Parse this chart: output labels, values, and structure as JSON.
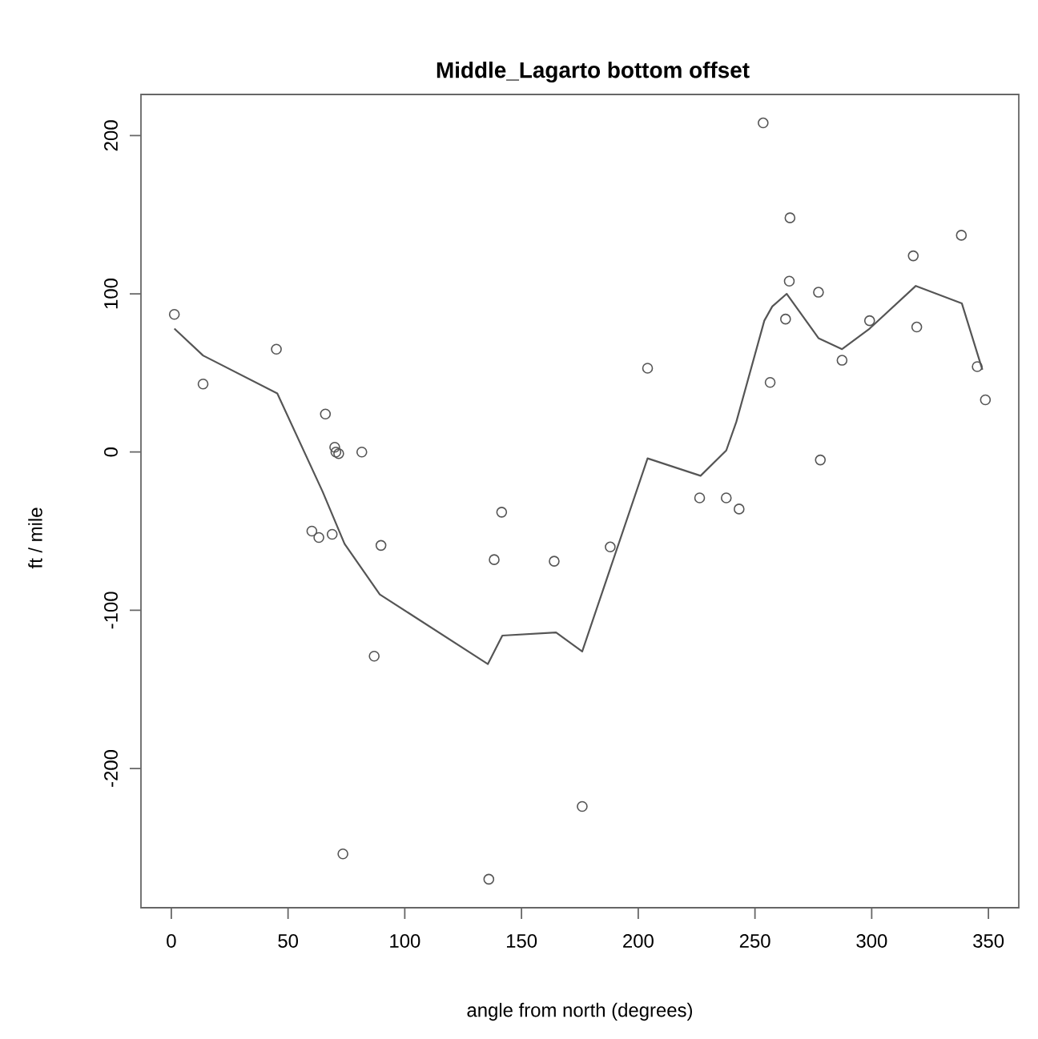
{
  "chart_data": {
    "type": "scatter",
    "title": "Middle_Lagarto bottom offset",
    "xlabel": "angle from north (degrees)",
    "ylabel": "ft / mile",
    "xlim": [
      -13,
      363
    ],
    "ylim": [
      -288,
      226
    ],
    "xticks": [
      0,
      50,
      100,
      150,
      200,
      250,
      300,
      350
    ],
    "yticks": [
      -200,
      -100,
      0,
      100,
      200
    ],
    "grid": false,
    "series": [
      {
        "marker": "circle",
        "color": "#555555",
        "x": [
          1.3,
          13.6,
          45,
          66,
          70,
          70.5,
          71.7,
          81.6,
          60.2,
          63.2,
          68.9,
          89.8,
          141.5,
          138.3,
          164,
          86.9,
          73.5,
          136,
          188,
          176,
          226.3,
          237.7,
          243.2,
          204,
          253.5,
          265,
          264.7,
          263.1,
          256.5,
          277.2,
          278,
          287.3,
          299.1,
          317.8,
          319.3,
          338.4,
          345.2,
          348.7
        ],
        "values": [
          87,
          43,
          65,
          24,
          3,
          0,
          -1,
          0,
          -50,
          -54,
          -52,
          -59,
          -38,
          -68,
          -69,
          -129,
          -254,
          -270,
          -60,
          -224,
          -29,
          -29,
          -36,
          53,
          208,
          148,
          108,
          84,
          44,
          101,
          -5,
          58,
          83,
          124,
          79,
          137,
          54,
          33
        ]
      },
      {
        "type": "line",
        "color": "#555555",
        "line_style": "solid",
        "x": [
          1.3,
          13.6,
          45.4,
          64.8,
          74.2,
          89.3,
          135.6,
          141.8,
          164.8,
          176,
          204,
          226.7,
          237.7,
          242,
          254,
          257.4,
          263.6,
          277.2,
          287.3,
          299.1,
          318.9,
          338.6,
          347.4
        ],
        "values": [
          78,
          61,
          37,
          -25,
          -58,
          -90,
          -134,
          -116,
          -114,
          -126,
          -4,
          -15,
          1,
          19,
          83,
          92,
          100,
          72,
          65,
          78,
          105,
          94,
          52
        ]
      }
    ]
  }
}
